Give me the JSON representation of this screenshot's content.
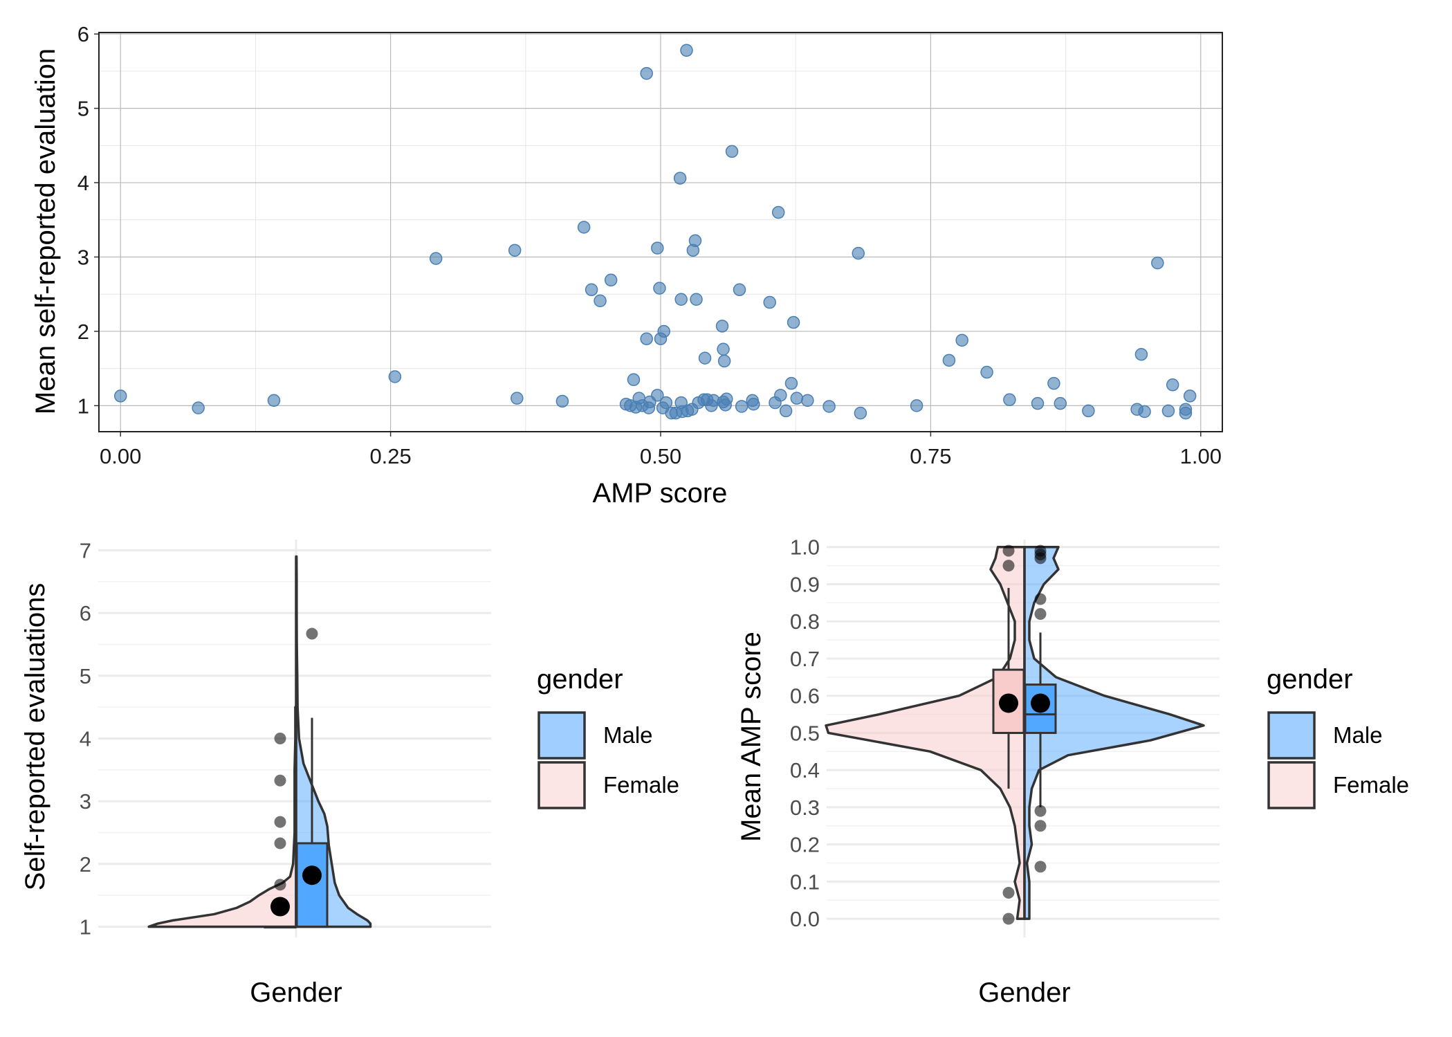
{
  "chart_data": [
    {
      "type": "scatter",
      "title": "",
      "xlabel": "AMP score",
      "ylabel": "Mean self-reported evaluation",
      "xlim": [
        -0.02,
        1.02
      ],
      "ylim": [
        0.65,
        6.02
      ],
      "x_ticks": [
        "0.00",
        "0.25",
        "0.50",
        "0.75",
        "1.00"
      ],
      "y_ticks": [
        "1",
        "2",
        "3",
        "4",
        "5",
        "6"
      ],
      "grid": true,
      "point_color": "#4a7fb4",
      "points": [
        {
          "x": 0.0,
          "y": 1.13
        },
        {
          "x": 0.072,
          "y": 0.97
        },
        {
          "x": 0.142,
          "y": 1.07
        },
        {
          "x": 0.254,
          "y": 1.39
        },
        {
          "x": 0.292,
          "y": 2.98
        },
        {
          "x": 0.365,
          "y": 3.09
        },
        {
          "x": 0.367,
          "y": 1.1
        },
        {
          "x": 0.409,
          "y": 1.06
        },
        {
          "x": 0.429,
          "y": 3.4
        },
        {
          "x": 0.436,
          "y": 2.56
        },
        {
          "x": 0.444,
          "y": 2.41
        },
        {
          "x": 0.454,
          "y": 2.69
        },
        {
          "x": 0.468,
          "y": 1.02
        },
        {
          "x": 0.472,
          "y": 1.0
        },
        {
          "x": 0.475,
          "y": 1.35
        },
        {
          "x": 0.477,
          "y": 0.98
        },
        {
          "x": 0.48,
          "y": 1.1
        },
        {
          "x": 0.483,
          "y": 1.0
        },
        {
          "x": 0.487,
          "y": 5.47
        },
        {
          "x": 0.487,
          "y": 1.9
        },
        {
          "x": 0.489,
          "y": 0.97
        },
        {
          "x": 0.49,
          "y": 1.05
        },
        {
          "x": 0.497,
          "y": 1.14
        },
        {
          "x": 0.497,
          "y": 3.12
        },
        {
          "x": 0.499,
          "y": 2.58
        },
        {
          "x": 0.5,
          "y": 1.9
        },
        {
          "x": 0.502,
          "y": 0.97
        },
        {
          "x": 0.503,
          "y": 2.0
        },
        {
          "x": 0.505,
          "y": 1.04
        },
        {
          "x": 0.51,
          "y": 0.9
        },
        {
          "x": 0.514,
          "y": 0.9
        },
        {
          "x": 0.518,
          "y": 4.06
        },
        {
          "x": 0.519,
          "y": 2.43
        },
        {
          "x": 0.519,
          "y": 1.04
        },
        {
          "x": 0.52,
          "y": 0.92
        },
        {
          "x": 0.524,
          "y": 5.78
        },
        {
          "x": 0.525,
          "y": 0.93
        },
        {
          "x": 0.529,
          "y": 0.95
        },
        {
          "x": 0.53,
          "y": 3.09
        },
        {
          "x": 0.532,
          "y": 3.22
        },
        {
          "x": 0.533,
          "y": 2.43
        },
        {
          "x": 0.535,
          "y": 1.04
        },
        {
          "x": 0.54,
          "y": 1.08
        },
        {
          "x": 0.541,
          "y": 1.64
        },
        {
          "x": 0.543,
          "y": 1.08
        },
        {
          "x": 0.547,
          "y": 1.0
        },
        {
          "x": 0.549,
          "y": 1.07
        },
        {
          "x": 0.557,
          "y": 2.07
        },
        {
          "x": 0.558,
          "y": 1.76
        },
        {
          "x": 0.558,
          "y": 1.05
        },
        {
          "x": 0.559,
          "y": 1.6
        },
        {
          "x": 0.56,
          "y": 1.01
        },
        {
          "x": 0.561,
          "y": 1.09
        },
        {
          "x": 0.566,
          "y": 4.42
        },
        {
          "x": 0.573,
          "y": 2.56
        },
        {
          "x": 0.575,
          "y": 0.99
        },
        {
          "x": 0.585,
          "y": 1.07
        },
        {
          "x": 0.586,
          "y": 1.02
        },
        {
          "x": 0.601,
          "y": 2.39
        },
        {
          "x": 0.606,
          "y": 1.04
        },
        {
          "x": 0.609,
          "y": 3.6
        },
        {
          "x": 0.611,
          "y": 1.14
        },
        {
          "x": 0.616,
          "y": 0.93
        },
        {
          "x": 0.621,
          "y": 1.3
        },
        {
          "x": 0.623,
          "y": 2.12
        },
        {
          "x": 0.626,
          "y": 1.1
        },
        {
          "x": 0.636,
          "y": 1.07
        },
        {
          "x": 0.656,
          "y": 0.99
        },
        {
          "x": 0.683,
          "y": 3.05
        },
        {
          "x": 0.685,
          "y": 0.9
        },
        {
          "x": 0.737,
          "y": 1.0
        },
        {
          "x": 0.767,
          "y": 1.61
        },
        {
          "x": 0.779,
          "y": 1.88
        },
        {
          "x": 0.802,
          "y": 1.45
        },
        {
          "x": 0.823,
          "y": 1.08
        },
        {
          "x": 0.849,
          "y": 1.03
        },
        {
          "x": 0.864,
          "y": 1.3
        },
        {
          "x": 0.87,
          "y": 1.03
        },
        {
          "x": 0.896,
          "y": 0.93
        },
        {
          "x": 0.941,
          "y": 0.95
        },
        {
          "x": 0.945,
          "y": 1.69
        },
        {
          "x": 0.948,
          "y": 0.92
        },
        {
          "x": 0.96,
          "y": 2.92
        },
        {
          "x": 0.97,
          "y": 0.93
        },
        {
          "x": 0.974,
          "y": 1.28
        },
        {
          "x": 0.986,
          "y": 0.95
        },
        {
          "x": 0.986,
          "y": 0.9
        },
        {
          "x": 0.99,
          "y": 1.13
        }
      ]
    },
    {
      "type": "violin",
      "title": "",
      "xlabel": "Gender",
      "ylabel": "Self-reported evaluations",
      "ylim": [
        0.83,
        7.17
      ],
      "y_ticks": [
        "1",
        "2",
        "3",
        "4",
        "5",
        "6",
        "7"
      ],
      "grid": true,
      "legend": {
        "title": "gender",
        "position": "right",
        "entries": [
          {
            "label": "Male",
            "color": "#52a7ff"
          },
          {
            "label": "Female",
            "color": "#f9cccc"
          }
        ]
      },
      "series": [
        {
          "name": "Female",
          "side": "left",
          "color": "#f9cccc",
          "density": [
            [
              1.0,
              0.99
            ],
            [
              1.05,
              0.93
            ],
            [
              1.1,
              0.83
            ],
            [
              1.2,
              0.55
            ],
            [
              1.3,
              0.4
            ],
            [
              1.4,
              0.31
            ],
            [
              1.5,
              0.25
            ],
            [
              1.6,
              0.18
            ],
            [
              1.7,
              0.09
            ],
            [
              1.8,
              0.04
            ],
            [
              1.9,
              0.03
            ],
            [
              2.0,
              0.02
            ],
            [
              2.5,
              0.01
            ],
            [
              3.0,
              0.01
            ],
            [
              3.5,
              0.01
            ],
            [
              4.0,
              0.005
            ],
            [
              4.5,
              0.005
            ]
          ],
          "box": {
            "min": 1.0,
            "q1": 1.0,
            "median": 1.0,
            "q3": 1.0,
            "max": 1.0
          },
          "points": [
            4.0,
            3.33,
            2.67,
            2.33,
            1.67
          ],
          "mean": 1.32
        },
        {
          "name": "Male",
          "side": "right",
          "color": "#52a7ff",
          "density": [
            [
              1.0,
              0.5
            ],
            [
              1.05,
              0.5
            ],
            [
              1.1,
              0.48
            ],
            [
              1.2,
              0.41
            ],
            [
              1.3,
              0.35
            ],
            [
              1.5,
              0.29
            ],
            [
              1.7,
              0.26
            ],
            [
              2.0,
              0.24
            ],
            [
              2.3,
              0.22
            ],
            [
              2.6,
              0.21
            ],
            [
              2.8,
              0.19
            ],
            [
              3.0,
              0.15
            ],
            [
              3.3,
              0.1
            ],
            [
              3.6,
              0.05
            ],
            [
              4.0,
              0.02
            ],
            [
              4.5,
              0.01
            ],
            [
              5.0,
              0.008
            ],
            [
              5.5,
              0.005
            ],
            [
              6.0,
              0.004
            ],
            [
              6.5,
              0.004
            ],
            [
              6.9,
              0.003
            ]
          ],
          "box": {
            "min": 1.0,
            "q1": 1.0,
            "median": 1.0,
            "q3": 2.33,
            "max": 4.33
          },
          "points": [
            5.67
          ],
          "mean": 1.82
        }
      ]
    },
    {
      "type": "violin",
      "title": "",
      "xlabel": "Gender",
      "ylabel": "Mean AMP score",
      "ylim": [
        -0.05,
        1.02
      ],
      "y_ticks": [
        "0.0",
        "0.1",
        "0.2",
        "0.3",
        "0.4",
        "0.5",
        "0.6",
        "0.7",
        "0.8",
        "0.9",
        "1.0"
      ],
      "grid": true,
      "legend": {
        "title": "gender",
        "position": "right",
        "entries": [
          {
            "label": "Male",
            "color": "#52a7ff"
          },
          {
            "label": "Female",
            "color": "#f9cccc"
          }
        ]
      },
      "series": [
        {
          "name": "Female",
          "side": "left",
          "color": "#f9cccc",
          "density": [
            [
              0.0,
              0.03
            ],
            [
              0.05,
              0.02
            ],
            [
              0.1,
              0.04
            ],
            [
              0.15,
              0.02
            ],
            [
              0.2,
              0.03
            ],
            [
              0.25,
              0.04
            ],
            [
              0.3,
              0.06
            ],
            [
              0.35,
              0.1
            ],
            [
              0.4,
              0.18
            ],
            [
              0.45,
              0.39
            ],
            [
              0.5,
              0.81
            ],
            [
              0.52,
              0.82
            ],
            [
              0.55,
              0.6
            ],
            [
              0.6,
              0.27
            ],
            [
              0.65,
              0.11
            ],
            [
              0.7,
              0.06
            ],
            [
              0.75,
              0.04
            ],
            [
              0.8,
              0.04
            ],
            [
              0.85,
              0.07
            ],
            [
              0.9,
              0.1
            ],
            [
              0.94,
              0.14
            ],
            [
              0.97,
              0.12
            ],
            [
              1.0,
              0.11
            ]
          ],
          "box": {
            "min": 0.35,
            "q1": 0.5,
            "median": 0.5,
            "q3": 0.67,
            "max": 0.89
          },
          "points": [
            0.99,
            0.95,
            0.07,
            0.0
          ],
          "mean": 0.58
        },
        {
          "name": "Male",
          "side": "right",
          "color": "#52a7ff",
          "density": [
            [
              0.0,
              0.02
            ],
            [
              0.05,
              0.02
            ],
            [
              0.1,
              0.02
            ],
            [
              0.15,
              0.01
            ],
            [
              0.2,
              0.03
            ],
            [
              0.25,
              0.02
            ],
            [
              0.3,
              0.02
            ],
            [
              0.35,
              0.03
            ],
            [
              0.4,
              0.06
            ],
            [
              0.44,
              0.18
            ],
            [
              0.48,
              0.52
            ],
            [
              0.52,
              0.74
            ],
            [
              0.55,
              0.6
            ],
            [
              0.6,
              0.33
            ],
            [
              0.65,
              0.13
            ],
            [
              0.7,
              0.04
            ],
            [
              0.75,
              0.02
            ],
            [
              0.8,
              0.02
            ],
            [
              0.85,
              0.04
            ],
            [
              0.9,
              0.08
            ],
            [
              0.94,
              0.14
            ],
            [
              0.97,
              0.12
            ],
            [
              1.0,
              0.14
            ]
          ],
          "box": {
            "min": 0.3,
            "q1": 0.5,
            "median": 0.55,
            "q3": 0.63,
            "max": 0.77
          },
          "points": [
            0.99,
            0.98,
            0.97,
            0.86,
            0.82,
            0.29,
            0.25,
            0.14
          ],
          "mean": 0.58
        }
      ]
    }
  ]
}
